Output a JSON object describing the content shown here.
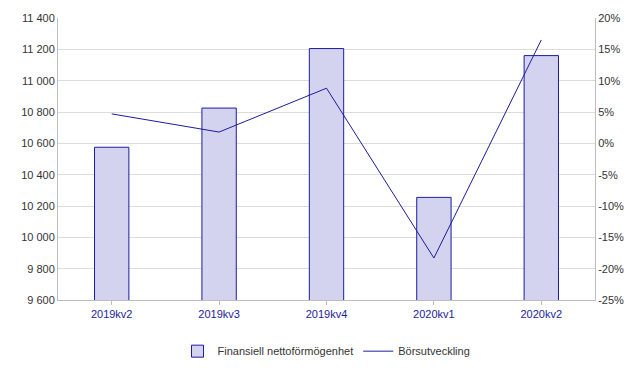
{
  "chart_data": {
    "type": "bar",
    "categories": [
      "2019kv2",
      "2019kv3",
      "2019kv4",
      "2020kv1",
      "2020kv2"
    ],
    "series": [
      {
        "name": "Finansiell nettoförmögenhet",
        "type": "bar",
        "color": "#d3d3f0",
        "values": [
          10575,
          10825,
          11205,
          10255,
          11160
        ]
      },
      {
        "name": "Börsutveckling",
        "type": "line",
        "axis": "y2",
        "color": "#1c1c9c",
        "values": [
          4.7,
          1.8,
          8.8,
          -18.3,
          16.5
        ]
      }
    ],
    "ylim": [
      9600,
      11400
    ],
    "yticks": [
      {
        "value": 9600,
        "label": "9 600"
      },
      {
        "value": 9800,
        "label": "9 800"
      },
      {
        "value": 10000,
        "label": "10 000"
      },
      {
        "value": 10200,
        "label": "10 200"
      },
      {
        "value": 10400,
        "label": "10 400"
      },
      {
        "value": 10600,
        "label": "10 600"
      },
      {
        "value": 10800,
        "label": "10 800"
      },
      {
        "value": 11000,
        "label": "11 000"
      },
      {
        "value": 11200,
        "label": "11 200"
      },
      {
        "value": 11400,
        "label": "11 400"
      }
    ],
    "y2lim": [
      -25,
      20
    ],
    "y2ticks": [
      {
        "value": -25,
        "label": "-25%"
      },
      {
        "value": -20,
        "label": "-20%"
      },
      {
        "value": -15,
        "label": "-15%"
      },
      {
        "value": -10,
        "label": "-10%"
      },
      {
        "value": -5,
        "label": "-5%"
      },
      {
        "value": 0,
        "label": "0%"
      },
      {
        "value": 5,
        "label": "5%"
      },
      {
        "value": 10,
        "label": "10%"
      },
      {
        "value": 15,
        "label": "15%"
      },
      {
        "value": 20,
        "label": "20%"
      }
    ],
    "grid": true,
    "legend": "bottom"
  }
}
